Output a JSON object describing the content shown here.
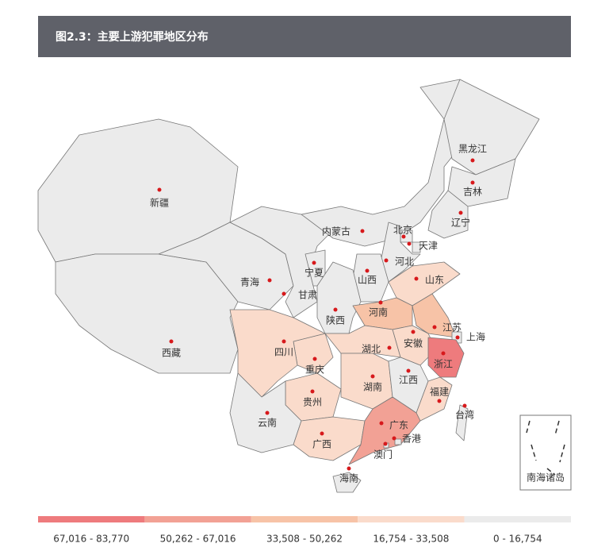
{
  "header": {
    "title": "图2.3：主要上游犯罪地区分布"
  },
  "regions": [
    {
      "name": "新疆",
      "color": "#ebebeb"
    },
    {
      "name": "西藏",
      "color": "#ebebeb"
    },
    {
      "name": "青海",
      "color": "#ebebeb"
    },
    {
      "name": "甘肃",
      "color": "#ebebeb"
    },
    {
      "name": "宁夏",
      "color": "#ebebeb"
    },
    {
      "name": "内蒙古",
      "color": "#ebebeb"
    },
    {
      "name": "黑龙江",
      "color": "#ebebeb"
    },
    {
      "name": "吉林",
      "color": "#ebebeb"
    },
    {
      "name": "辽宁",
      "color": "#ebebeb"
    },
    {
      "name": "北京",
      "color": "#ebebeb"
    },
    {
      "name": "天津",
      "color": "#ebebeb"
    },
    {
      "name": "河北",
      "color": "#ebebeb"
    },
    {
      "name": "山西",
      "color": "#ebebeb"
    },
    {
      "name": "陕西",
      "color": "#ebebeb"
    },
    {
      "name": "山东",
      "color": "#fadbcb"
    },
    {
      "name": "河南",
      "color": "#f7c3a7"
    },
    {
      "name": "江苏",
      "color": "#f7c3a7"
    },
    {
      "name": "上海",
      "color": "#ebebeb"
    },
    {
      "name": "安徽",
      "color": "#fadbcb"
    },
    {
      "name": "浙江",
      "color": "#ee7b7d"
    },
    {
      "name": "湖北",
      "color": "#fadbcb"
    },
    {
      "name": "重庆",
      "color": "#fadbcb"
    },
    {
      "name": "四川",
      "color": "#fadbcb"
    },
    {
      "name": "贵州",
      "color": "#fadbcb"
    },
    {
      "name": "云南",
      "color": "#ebebeb"
    },
    {
      "name": "湖南",
      "color": "#fadbcb"
    },
    {
      "name": "江西",
      "color": "#ebebeb"
    },
    {
      "name": "福建",
      "color": "#fadbcb"
    },
    {
      "name": "广西",
      "color": "#fadbcb"
    },
    {
      "name": "广东",
      "color": "#f2a195"
    },
    {
      "name": "香港",
      "color": "#ebebeb"
    },
    {
      "name": "澳门",
      "color": "#ebebeb"
    },
    {
      "name": "海南",
      "color": "#ebebeb"
    },
    {
      "name": "台湾",
      "color": "#ebebeb"
    }
  ],
  "inset_label": "南海诸岛",
  "legend": [
    {
      "label": "67,016 - 83,770",
      "color": "#ee7b7d"
    },
    {
      "label": "50,262 - 67,016",
      "color": "#f2a195"
    },
    {
      "label": "33,508 - 50,262",
      "color": "#f7c3a7"
    },
    {
      "label": "16,754 - 33,508",
      "color": "#fadbcb"
    },
    {
      "label": "0 - 16,754",
      "color": "#ebebeb"
    }
  ]
}
